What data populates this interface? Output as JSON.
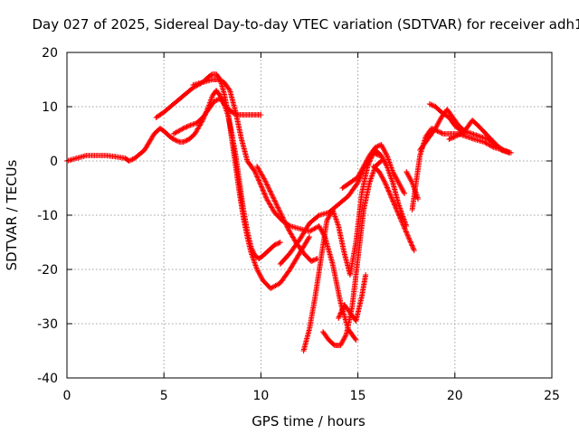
{
  "chart_data": {
    "type": "scatter",
    "title": "Day 027 of 2025, Sidereal Day-to-day VTEC variation (SDTVAR) for receiver adh1",
    "xlabel": "GPS time / hours",
    "ylabel": "SDTVAR / TECUs",
    "xlim": [
      0,
      25
    ],
    "ylim": [
      -40,
      20
    ],
    "xticks": [
      "0",
      "5",
      "10",
      "15",
      "20",
      "25"
    ],
    "yticks": [
      "20",
      "10",
      "0",
      "-10",
      "-20",
      "-30",
      "-40"
    ],
    "grid": true,
    "marker": "+",
    "color": "#ff0000",
    "series": [
      {
        "x": [
          0,
          0.5,
          1,
          1.5,
          2,
          2.5,
          3,
          3.2,
          3.5,
          4,
          4.5,
          4.8,
          5,
          5.3,
          5.5,
          5.8,
          6,
          6.3,
          6.6,
          7,
          7.3,
          7.5,
          7.7,
          7.9,
          8.1,
          8.3,
          8.5,
          8.7,
          8.9,
          9.1,
          9.3,
          9.5,
          9.7,
          9.9,
          10.1,
          10.4,
          10.7,
          11
        ],
        "y": [
          0,
          0.5,
          1,
          1,
          1,
          0.8,
          0.5,
          0,
          0.5,
          2,
          5,
          6,
          5.5,
          4.5,
          4,
          3.5,
          3.5,
          4,
          5,
          7.5,
          10,
          12,
          13,
          12,
          10.5,
          8.5,
          5,
          1,
          -4,
          -9,
          -13,
          -16,
          -17.5,
          -18,
          -17.5,
          -16.5,
          -15.5,
          -15
        ]
      },
      {
        "x": [
          4.6,
          5,
          5.5,
          6,
          6.5,
          7,
          7.3,
          7.5,
          7.7,
          7.9,
          8.1,
          8.3,
          8.5,
          8.7,
          8.9,
          9.1,
          9.3,
          9.5,
          9.8,
          10.1,
          10.5,
          11,
          11.5,
          12,
          12.5
        ],
        "y": [
          8,
          9,
          10.5,
          12,
          13.5,
          14.5,
          15.5,
          16,
          16,
          15,
          12.5,
          9,
          4,
          -1,
          -6,
          -10.5,
          -14,
          -17,
          -20,
          -22,
          -23.5,
          -22.5,
          -20,
          -17,
          -14
        ]
      },
      {
        "x": [
          5.5,
          6,
          6.3,
          6.7,
          7,
          7.3,
          7.6,
          7.9,
          8.2,
          8.5,
          8.8,
          9.2,
          9.6,
          10
        ],
        "y": [
          5,
          6,
          6.5,
          7,
          8,
          9.5,
          11,
          11.5,
          10,
          9,
          8.5,
          8.5,
          8.5,
          8.5
        ]
      },
      {
        "x": [
          6.5,
          7,
          7.5,
          7.8,
          8.1,
          8.4,
          8.7,
          9,
          9.3,
          9.7,
          10,
          10.3,
          10.7,
          11.1,
          11.5,
          12,
          12.5,
          13,
          13.3,
          13.7,
          14.1,
          14.5,
          14.9
        ],
        "y": [
          14,
          14.5,
          15,
          15,
          14.5,
          13,
          9,
          4,
          0,
          -2,
          -4.5,
          -7,
          -9.5,
          -11,
          -12,
          -12.5,
          -13,
          -12,
          -14,
          -19,
          -26,
          -31,
          -33
        ]
      },
      {
        "x": [
          9.8,
          10.2,
          10.6,
          11,
          11.4,
          11.8,
          12.2,
          12.6,
          12.9
        ],
        "y": [
          -1,
          -3.5,
          -6.5,
          -9.5,
          -12.5,
          -15,
          -17,
          -18.5,
          -18
        ]
      },
      {
        "x": [
          11,
          11.5,
          12,
          12.5,
          13,
          13.5,
          14,
          14.5,
          15,
          15.3,
          15.6,
          15.9,
          16.2,
          16.5,
          16.8,
          17.1,
          17.5
        ],
        "y": [
          -19,
          -17,
          -14.5,
          -11.5,
          -10,
          -9.5,
          -8,
          -6.5,
          -4,
          -1.5,
          0.5,
          2,
          1,
          -1,
          -4,
          -8,
          -12
        ]
      },
      {
        "x": [
          12.2,
          12.5,
          12.8,
          13.1,
          13.4,
          13.7,
          14,
          14.3,
          14.6,
          14.9,
          15.2,
          15.5,
          15.8,
          16.1
        ],
        "y": [
          -35,
          -31,
          -25,
          -18,
          -11,
          -9,
          -12,
          -17,
          -21,
          -15,
          -6,
          -1,
          1.5,
          1
        ]
      },
      {
        "x": [
          13.2,
          13.5,
          13.8,
          14.1,
          14.4,
          14.7,
          15,
          15.3,
          15.6,
          15.9,
          16.2
        ],
        "y": [
          -31.5,
          -33,
          -34,
          -34,
          -32,
          -27,
          -18,
          -9,
          -4,
          -1,
          0
        ]
      },
      {
        "x": [
          14.2,
          14.6,
          15,
          15.3,
          15.6,
          15.9,
          16.2,
          16.5,
          16.8,
          17.1,
          17.4
        ],
        "y": [
          -5,
          -4,
          -3,
          -1,
          1,
          2.5,
          3,
          1,
          -2,
          -4,
          -6
        ]
      },
      {
        "x": [
          14,
          14.3,
          14.6,
          14.9,
          15.2,
          15.4
        ],
        "y": [
          -29,
          -26.5,
          -28,
          -29.5,
          -25,
          -21
        ]
      },
      {
        "x": [
          15.8,
          16.1,
          16.4,
          16.7,
          17,
          17.3,
          17.6,
          17.9
        ],
        "y": [
          -1,
          -2,
          -4,
          -6.5,
          -9,
          -11.5,
          -14,
          -16.5
        ]
      },
      {
        "x": [
          17.8,
          18,
          18.2,
          18.5,
          18.8,
          19.1,
          19.4,
          19.8,
          20.2,
          20.6,
          21,
          21.5,
          22,
          22.5,
          22.9
        ],
        "y": [
          -9,
          -4,
          1,
          4.5,
          6,
          5.5,
          5,
          5,
          5,
          4.5,
          4,
          3.5,
          2.5,
          2,
          1.5
        ]
      },
      {
        "x": [
          18.2,
          18.6,
          19,
          19.3,
          19.6,
          19.9,
          20.2,
          20.5,
          20.9,
          21.3,
          21.7,
          22.1,
          22.5,
          22.9
        ],
        "y": [
          2,
          4,
          6,
          8,
          9.5,
          8,
          6.5,
          5.5,
          5,
          4.5,
          4,
          3,
          2,
          1.5
        ]
      },
      {
        "x": [
          19.7,
          20,
          20.3,
          20.6,
          20.9,
          21.2,
          21.6,
          22,
          22.4,
          22.8
        ],
        "y": [
          4,
          4.5,
          5,
          6,
          7.5,
          6.5,
          5,
          3.5,
          2,
          1.5
        ]
      },
      {
        "x": [
          18.7,
          19,
          19.3,
          19.7,
          20,
          20.5
        ],
        "y": [
          10.5,
          10,
          9,
          8,
          6.5,
          5
        ]
      },
      {
        "x": [
          17.5,
          17.8,
          18.1
        ],
        "y": [
          -2,
          -4,
          -7
        ]
      }
    ]
  }
}
